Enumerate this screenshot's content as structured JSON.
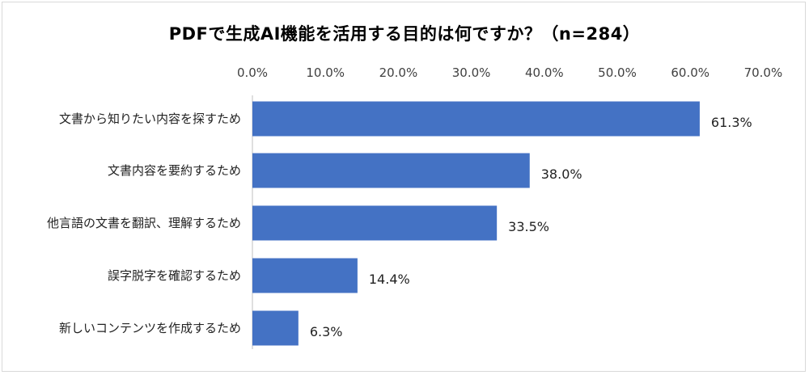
{
  "chart_data": {
    "type": "bar",
    "orientation": "horizontal",
    "title": "PDFで生成AI機能を活用する目的は何ですか？（n=284）",
    "categories": [
      "文書から知りたい内容を探すため",
      "文書内容を要約するため",
      "他言語の文書を翻訳、理解するため",
      "誤字脱字を確認するため",
      "新しいコンテンツを作成するため"
    ],
    "values": [
      61.3,
      38.0,
      33.5,
      14.4,
      6.3
    ],
    "value_labels": [
      "61.3%",
      "38.0%",
      "33.5%",
      "14.4%",
      "6.3%"
    ],
    "xticks": [
      "0.0%",
      "10.0%",
      "20.0%",
      "30.0%",
      "40.0%",
      "50.0%",
      "60.0%",
      "70.0%"
    ],
    "xlim": [
      0,
      70
    ],
    "x_axis_position": "top",
    "grid": false,
    "bar_color": "#4472c4"
  }
}
